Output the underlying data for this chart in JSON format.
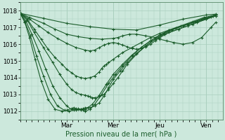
{
  "bg_color": "#cce8dc",
  "grid_color": "#aacfbe",
  "line_color": "#1a5c2a",
  "title": "Pression niveau de la mer( hPa )",
  "ylim": [
    1011.5,
    1018.5
  ],
  "yticks": [
    1012,
    1013,
    1014,
    1015,
    1016,
    1017,
    1018
  ],
  "xlabel_days": [
    "Mar",
    "Mer",
    "Jeu",
    "Ven"
  ],
  "xtick_pos": [
    1.0,
    2.0,
    3.0,
    4.0
  ],
  "xlim": [
    0,
    4.35
  ],
  "figsize": [
    3.2,
    2.0
  ],
  "dpi": 100,
  "lines": [
    {
      "x": [
        0.0,
        0.5,
        1.0,
        1.5,
        2.0,
        2.5,
        3.0,
        3.5,
        4.0,
        4.2
      ],
      "y": [
        1017.85,
        1017.55,
        1017.25,
        1017.05,
        1016.9,
        1016.85,
        1017.15,
        1017.5,
        1017.75,
        1017.8
      ]
    },
    {
      "x": [
        0.0,
        0.2,
        0.5,
        0.75,
        1.0,
        1.25,
        1.5,
        1.75,
        2.0,
        2.1,
        2.2,
        2.35,
        2.5,
        2.7,
        2.9,
        3.0,
        3.15,
        3.3,
        3.5,
        3.7,
        3.9,
        4.1,
        4.2
      ],
      "y": [
        1017.85,
        1017.6,
        1017.25,
        1016.9,
        1016.6,
        1016.45,
        1016.35,
        1016.3,
        1016.35,
        1016.4,
        1016.5,
        1016.6,
        1016.6,
        1016.5,
        1016.4,
        1016.3,
        1016.2,
        1016.1,
        1016.0,
        1016.1,
        1016.4,
        1017.0,
        1017.3
      ]
    },
    {
      "x": [
        0.0,
        0.2,
        0.4,
        0.6,
        0.8,
        1.0,
        1.2,
        1.4,
        1.5,
        1.6,
        1.7,
        1.8,
        1.9,
        2.0,
        2.1,
        2.2,
        2.3,
        2.4,
        2.5,
        2.6,
        2.7,
        2.8,
        2.9,
        3.0,
        3.2,
        3.4,
        3.6,
        3.8,
        4.0,
        4.2
      ],
      "y": [
        1017.85,
        1017.5,
        1017.1,
        1016.7,
        1016.35,
        1016.05,
        1015.8,
        1015.65,
        1015.6,
        1015.65,
        1015.8,
        1015.95,
        1016.05,
        1016.1,
        1016.05,
        1015.95,
        1015.85,
        1015.75,
        1015.7,
        1015.75,
        1015.85,
        1016.0,
        1016.2,
        1016.4,
        1016.7,
        1016.9,
        1017.1,
        1017.3,
        1017.5,
        1017.7
      ]
    },
    {
      "x": [
        0.0,
        0.15,
        0.3,
        0.45,
        0.6,
        0.75,
        0.9,
        1.0,
        1.1,
        1.2,
        1.3,
        1.4,
        1.5,
        1.6,
        1.7,
        1.75,
        1.8,
        1.85,
        1.9,
        2.0,
        2.1,
        2.2,
        2.4,
        2.6,
        2.8,
        3.0,
        3.2,
        3.5,
        3.8,
        4.0,
        4.1,
        4.2
      ],
      "y": [
        1017.85,
        1017.5,
        1016.9,
        1016.3,
        1015.7,
        1015.2,
        1014.8,
        1014.5,
        1014.3,
        1014.1,
        1014.0,
        1013.95,
        1014.0,
        1014.1,
        1014.35,
        1014.55,
        1014.7,
        1014.8,
        1014.9,
        1015.1,
        1015.3,
        1015.5,
        1015.8,
        1016.1,
        1016.4,
        1016.65,
        1016.85,
        1017.1,
        1017.35,
        1017.55,
        1017.65,
        1017.75
      ]
    },
    {
      "x": [
        0.0,
        0.15,
        0.3,
        0.5,
        0.7,
        0.85,
        1.0,
        1.1,
        1.2,
        1.3,
        1.4,
        1.45,
        1.5,
        1.55,
        1.6,
        1.7,
        1.8,
        1.9,
        2.0,
        2.1,
        2.2,
        2.3,
        2.5,
        2.7,
        2.9,
        3.1,
        3.4,
        3.7,
        4.0,
        4.2
      ],
      "y": [
        1017.85,
        1017.45,
        1016.7,
        1015.8,
        1014.9,
        1014.2,
        1013.6,
        1013.3,
        1013.1,
        1013.0,
        1012.95,
        1012.9,
        1012.85,
        1012.8,
        1012.8,
        1012.85,
        1013.0,
        1013.3,
        1013.65,
        1014.0,
        1014.4,
        1014.8,
        1015.4,
        1015.9,
        1016.3,
        1016.6,
        1016.9,
        1017.2,
        1017.5,
        1017.7
      ]
    },
    {
      "x": [
        0.0,
        0.12,
        0.25,
        0.4,
        0.55,
        0.7,
        0.85,
        1.0,
        1.1,
        1.2,
        1.3,
        1.35,
        1.4,
        1.45,
        1.5,
        1.6,
        1.7,
        1.8,
        1.9,
        2.0,
        2.15,
        2.3,
        2.5,
        2.7,
        2.9,
        3.1,
        3.35,
        3.6,
        3.9,
        4.15
      ],
      "y": [
        1017.85,
        1017.4,
        1016.6,
        1015.6,
        1014.5,
        1013.5,
        1012.8,
        1012.3,
        1012.1,
        1012.05,
        1012.1,
        1012.15,
        1012.2,
        1012.2,
        1012.2,
        1012.3,
        1012.5,
        1012.9,
        1013.4,
        1013.9,
        1014.4,
        1014.9,
        1015.45,
        1015.9,
        1016.3,
        1016.65,
        1016.95,
        1017.2,
        1017.5,
        1017.7
      ]
    },
    {
      "x": [
        0.0,
        0.1,
        0.22,
        0.35,
        0.5,
        0.65,
        0.8,
        0.95,
        1.05,
        1.15,
        1.2,
        1.25,
        1.3,
        1.35,
        1.4,
        1.5,
        1.6,
        1.75,
        1.9,
        2.05,
        2.2,
        2.4,
        2.6,
        2.8,
        3.0,
        3.25,
        3.5,
        3.75,
        4.0,
        4.2
      ],
      "y": [
        1017.85,
        1017.35,
        1016.5,
        1015.3,
        1014.1,
        1013.0,
        1012.3,
        1012.05,
        1012.0,
        1012.05,
        1012.1,
        1012.15,
        1012.1,
        1012.05,
        1012.0,
        1012.1,
        1012.4,
        1013.0,
        1013.65,
        1014.2,
        1014.7,
        1015.3,
        1015.8,
        1016.2,
        1016.55,
        1016.85,
        1017.1,
        1017.35,
        1017.55,
        1017.75
      ]
    },
    {
      "x": [
        0.0,
        0.1,
        0.2,
        0.32,
        0.45,
        0.6,
        0.75,
        0.9,
        1.0,
        1.1,
        1.15,
        1.2,
        1.25,
        1.3,
        1.4,
        1.55,
        1.7,
        1.85,
        2.0,
        2.2,
        2.4,
        2.6,
        2.8,
        3.0,
        3.2,
        3.45,
        3.7,
        3.95,
        4.2
      ],
      "y": [
        1017.85,
        1017.3,
        1016.4,
        1015.1,
        1013.8,
        1012.7,
        1012.1,
        1012.0,
        1012.05,
        1012.15,
        1012.2,
        1012.15,
        1012.1,
        1012.05,
        1012.1,
        1012.4,
        1012.95,
        1013.6,
        1014.2,
        1014.8,
        1015.35,
        1015.8,
        1016.2,
        1016.55,
        1016.85,
        1017.1,
        1017.35,
        1017.6,
        1017.75
      ]
    }
  ]
}
